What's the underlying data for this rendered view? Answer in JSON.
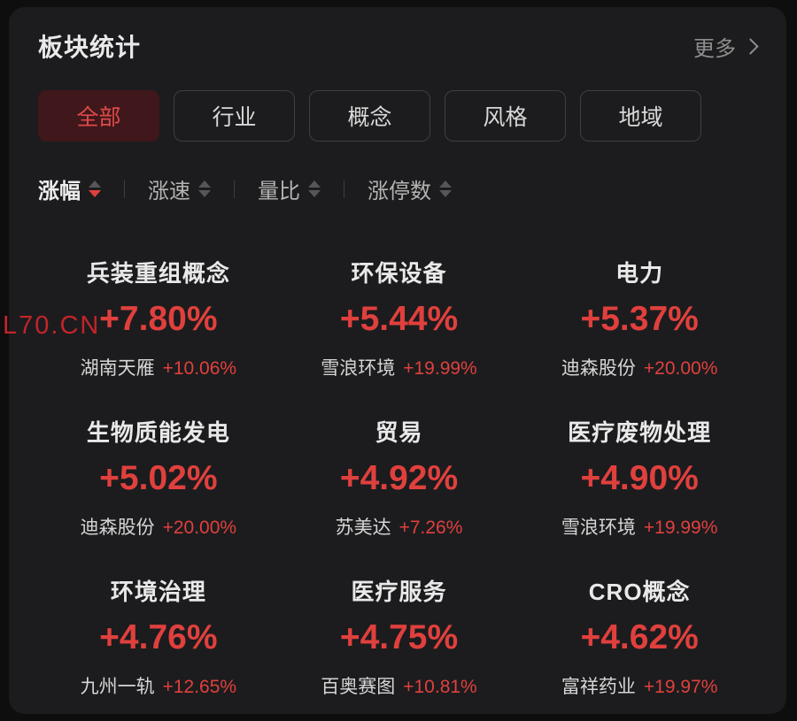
{
  "colors": {
    "page_bg": "#0e0e0e",
    "panel_bg": "#1c1c1e",
    "red": "#e0403d",
    "tab_active_bg": "#40171a",
    "tab_active_text": "#de4a4a",
    "watermark_red": "#c2242a"
  },
  "header": {
    "title": "板块统计",
    "more_label": "更多"
  },
  "tabs": [
    {
      "key": "all",
      "label": "全部",
      "active": true
    },
    {
      "key": "industry",
      "label": "行业",
      "active": false
    },
    {
      "key": "concept",
      "label": "概念",
      "active": false
    },
    {
      "key": "style",
      "label": "风格",
      "active": false
    },
    {
      "key": "region",
      "label": "地域",
      "active": false
    }
  ],
  "sort_bar": {
    "items": [
      {
        "key": "change-percent",
        "label": "涨幅",
        "active": true,
        "direction": "desc"
      },
      {
        "key": "change-speed",
        "label": "涨速",
        "active": false,
        "direction": "none"
      },
      {
        "key": "volume-ratio",
        "label": "量比",
        "active": false,
        "direction": "none"
      },
      {
        "key": "limit-up-count",
        "label": "涨停数",
        "active": false,
        "direction": "none"
      }
    ]
  },
  "watermark": "L70.CN",
  "sectors": [
    {
      "name": "兵装重组概念",
      "change": "+7.80%",
      "leading_stock": "湖南天雁",
      "leading_stock_change": "+10.06%"
    },
    {
      "name": "环保设备",
      "change": "+5.44%",
      "leading_stock": "雪浪环境",
      "leading_stock_change": "+19.99%"
    },
    {
      "name": "电力",
      "change": "+5.37%",
      "leading_stock": "迪森股份",
      "leading_stock_change": "+20.00%"
    },
    {
      "name": "生物质能发电",
      "change": "+5.02%",
      "leading_stock": "迪森股份",
      "leading_stock_change": "+20.00%"
    },
    {
      "name": "贸易",
      "change": "+4.92%",
      "leading_stock": "苏美达",
      "leading_stock_change": "+7.26%"
    },
    {
      "name": "医疗废物处理",
      "change": "+4.90%",
      "leading_stock": "雪浪环境",
      "leading_stock_change": "+19.99%"
    },
    {
      "name": "环境治理",
      "change": "+4.76%",
      "leading_stock": "九州一轨",
      "leading_stock_change": "+12.65%"
    },
    {
      "name": "医疗服务",
      "change": "+4.75%",
      "leading_stock": "百奥赛图",
      "leading_stock_change": "+10.81%"
    },
    {
      "name": "CRO概念",
      "change": "+4.62%",
      "leading_stock": "富祥药业",
      "leading_stock_change": "+19.97%"
    }
  ]
}
